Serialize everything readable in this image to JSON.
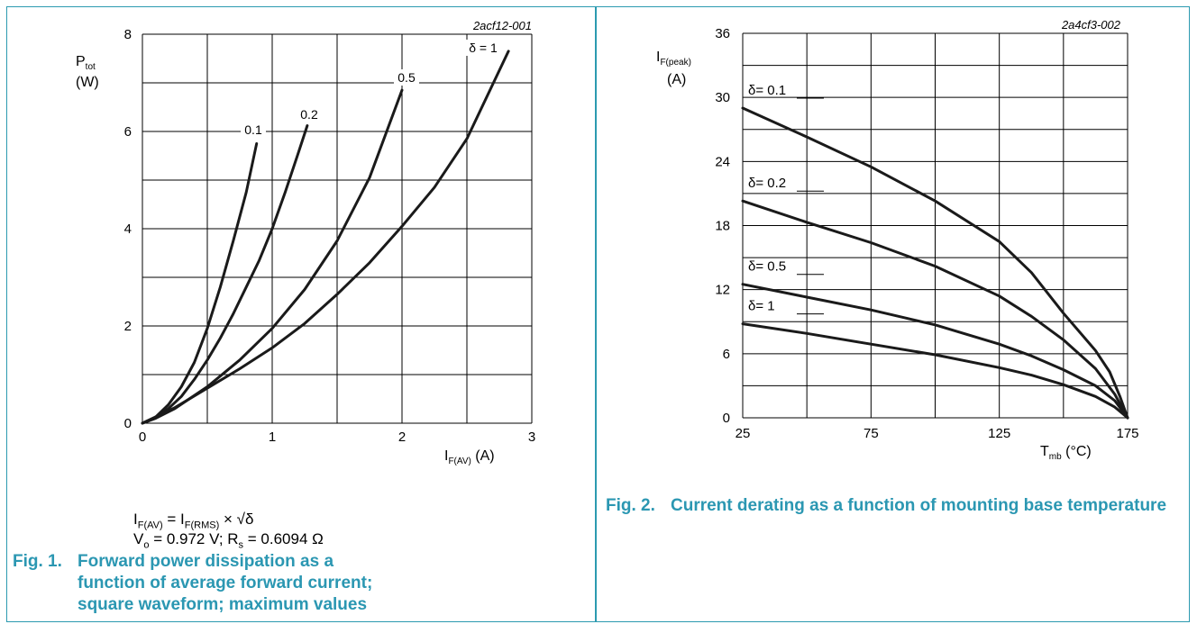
{
  "figures": [
    {
      "figure_number": "Fig. 1.",
      "caption": "Forward power dissipation as a function of average forward current; square waveform; maximum values",
      "code": "2acf12-001",
      "formula_line1_lhs": "I",
      "formula_line1_lhs_sub": "F(AV)",
      "formula_line1_mid": " = I",
      "formula_line1_mid_sub": "F(RMS)",
      "formula_line1_rhs": " × √δ",
      "formula_line2_a": "V",
      "formula_line2_a_sub": "o",
      "formula_line2_b": " = 0.972 V; R",
      "formula_line2_b_sub": "s",
      "formula_line2_c": " = 0.6094 Ω",
      "y_symbol": "P",
      "y_symbol_sub": "tot",
      "y_unit": "(W)",
      "x_symbol": "I",
      "x_symbol_sub": "F(AV)",
      "x_unit": " (A)"
    },
    {
      "figure_number": "Fig. 2.",
      "caption": "Current derating as a function of mounting base temperature",
      "code": "2a4cf3-002",
      "y_symbol": "I",
      "y_symbol_sub": "F(peak)",
      "y_unit": "(A)",
      "x_symbol": "T",
      "x_symbol_sub": "mb",
      "x_unit": " (°C)"
    }
  ],
  "chart_data": [
    {
      "type": "line",
      "xlim": [
        0,
        3
      ],
      "ylim": [
        0,
        8
      ],
      "x_ticks": [
        "0",
        "1",
        "2",
        "3"
      ],
      "y_ticks": [
        "0",
        "2",
        "4",
        "6",
        "8"
      ],
      "grid": true,
      "series": [
        {
          "name": "0.1",
          "points": [
            [
              0,
              0
            ],
            [
              0.1,
              0.12
            ],
            [
              0.2,
              0.38
            ],
            [
              0.3,
              0.75
            ],
            [
              0.4,
              1.25
            ],
            [
              0.5,
              1.95
            ],
            [
              0.6,
              2.8
            ],
            [
              0.7,
              3.75
            ],
            [
              0.8,
              4.75
            ],
            [
              0.88,
              5.75
            ]
          ]
        },
        {
          "name": "0.2",
          "points": [
            [
              0,
              0
            ],
            [
              0.1,
              0.1
            ],
            [
              0.2,
              0.3
            ],
            [
              0.3,
              0.55
            ],
            [
              0.4,
              0.9
            ],
            [
              0.5,
              1.3
            ],
            [
              0.6,
              1.75
            ],
            [
              0.7,
              2.25
            ],
            [
              0.8,
              2.8
            ],
            [
              0.9,
              3.35
            ],
            [
              1.0,
              4.0
            ],
            [
              1.1,
              4.75
            ],
            [
              1.2,
              5.55
            ],
            [
              1.27,
              6.12
            ]
          ]
        },
        {
          "name": "0.5",
          "points": [
            [
              0,
              0
            ],
            [
              0.1,
              0.1
            ],
            [
              0.25,
              0.3
            ],
            [
              0.5,
              0.75
            ],
            [
              0.75,
              1.3
            ],
            [
              1.0,
              1.95
            ],
            [
              1.25,
              2.75
            ],
            [
              1.5,
              3.75
            ],
            [
              1.75,
              5.05
            ],
            [
              2.0,
              6.85
            ]
          ]
        },
        {
          "name": "δ = 1",
          "points": [
            [
              0,
              0
            ],
            [
              0.25,
              0.32
            ],
            [
              0.5,
              0.72
            ],
            [
              0.75,
              1.12
            ],
            [
              1.0,
              1.55
            ],
            [
              1.25,
              2.05
            ],
            [
              1.5,
              2.65
            ],
            [
              1.75,
              3.3
            ],
            [
              2.0,
              4.05
            ],
            [
              2.25,
              4.85
            ],
            [
              2.5,
              5.85
            ],
            [
              2.82,
              7.65
            ]
          ]
        }
      ]
    },
    {
      "type": "line",
      "xlim": [
        25,
        175
      ],
      "ylim": [
        0,
        36
      ],
      "x_ticks": [
        "25",
        "75",
        "125",
        "175"
      ],
      "y_ticks": [
        "0",
        "6",
        "12",
        "18",
        "24",
        "30",
        "36"
      ],
      "grid": true,
      "series": [
        {
          "name": "δ= 0.1",
          "points": [
            [
              25,
              29
            ],
            [
              50,
              26.3
            ],
            [
              75,
              23.5
            ],
            [
              100,
              20.3
            ],
            [
              125,
              16.5
            ],
            [
              137.5,
              13.6
            ],
            [
              150,
              9.8
            ],
            [
              162.5,
              6.3
            ],
            [
              168,
              4.3
            ],
            [
              172,
              2
            ],
            [
              175,
              0
            ]
          ]
        },
        {
          "name": "δ= 0.2",
          "points": [
            [
              25,
              20.3
            ],
            [
              50,
              18.3
            ],
            [
              75,
              16.4
            ],
            [
              100,
              14.2
            ],
            [
              125,
              11.4
            ],
            [
              137.5,
              9.5
            ],
            [
              150,
              7.3
            ],
            [
              162.5,
              4.6
            ],
            [
              170,
              2.2
            ],
            [
              175,
              0
            ]
          ]
        },
        {
          "name": "δ= 0.5",
          "points": [
            [
              25,
              12.5
            ],
            [
              50,
              11.3
            ],
            [
              75,
              10.1
            ],
            [
              100,
              8.7
            ],
            [
              125,
              6.9
            ],
            [
              137.5,
              5.8
            ],
            [
              150,
              4.5
            ],
            [
              162.5,
              3.0
            ],
            [
              170,
              1.6
            ],
            [
              175,
              0
            ]
          ]
        },
        {
          "name": "δ= 1",
          "points": [
            [
              25,
              8.8
            ],
            [
              50,
              7.9
            ],
            [
              75,
              6.9
            ],
            [
              100,
              5.9
            ],
            [
              125,
              4.7
            ],
            [
              137.5,
              4.0
            ],
            [
              150,
              3.1
            ],
            [
              162.5,
              2.0
            ],
            [
              170,
              1.0
            ],
            [
              175,
              0
            ]
          ]
        }
      ]
    }
  ]
}
